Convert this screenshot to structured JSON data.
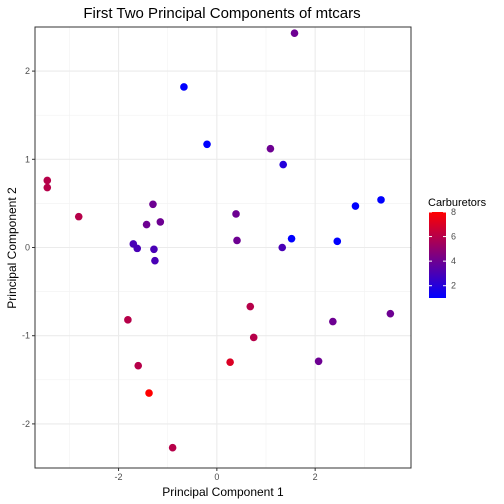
{
  "chart_data": {
    "type": "scatter",
    "title": "First Two Principal Components of mtcars",
    "xlabel": "Principal Component 1",
    "ylabel": "Principal Component 2",
    "xlim": [
      -3.7,
      3.95
    ],
    "ylim": [
      -2.5,
      2.5
    ],
    "x_ticks": [
      -2,
      0,
      2
    ],
    "y_ticks": [
      -2,
      -1,
      0,
      1,
      2
    ],
    "x_tick_labels": [
      "-2",
      "0",
      "2"
    ],
    "y_tick_labels": [
      "-2",
      "-1",
      "0",
      "1",
      "2"
    ],
    "grid": true,
    "legend": {
      "title": "Carburetors",
      "position": "right",
      "range": [
        1,
        8
      ],
      "ticks": [
        2,
        4,
        6,
        8
      ],
      "tick_labels": [
        "2",
        "4",
        "6",
        "8"
      ],
      "low_color": "#0000ff",
      "high_color": "#ff0000"
    },
    "points": [
      {
        "x": 1.58,
        "y": 2.43,
        "carb": 4
      },
      {
        "x": -0.67,
        "y": 1.82,
        "carb": 1
      },
      {
        "x": -0.2,
        "y": 1.17,
        "carb": 1
      },
      {
        "x": 1.09,
        "y": 1.12,
        "carb": 4
      },
      {
        "x": 1.35,
        "y": 0.94,
        "carb": 2
      },
      {
        "x": -3.45,
        "y": 0.76,
        "carb": 6
      },
      {
        "x": -3.45,
        "y": 0.68,
        "carb": 6
      },
      {
        "x": 2.82,
        "y": 0.47,
        "carb": 1
      },
      {
        "x": 3.34,
        "y": 0.54,
        "carb": 1
      },
      {
        "x": -2.81,
        "y": 0.35,
        "carb": 6
      },
      {
        "x": -1.3,
        "y": 0.49,
        "carb": 4
      },
      {
        "x": 0.39,
        "y": 0.38,
        "carb": 4
      },
      {
        "x": -1.15,
        "y": 0.29,
        "carb": 4
      },
      {
        "x": -1.43,
        "y": 0.26,
        "carb": 4
      },
      {
        "x": 1.52,
        "y": 0.1,
        "carb": 1
      },
      {
        "x": 0.41,
        "y": 0.08,
        "carb": 4
      },
      {
        "x": 2.45,
        "y": 0.07,
        "carb": 1
      },
      {
        "x": -1.7,
        "y": 0.04,
        "carb": 3
      },
      {
        "x": -1.62,
        "y": -0.01,
        "carb": 3
      },
      {
        "x": -1.28,
        "y": -0.02,
        "carb": 3
      },
      {
        "x": 1.33,
        "y": 0.0,
        "carb": 3
      },
      {
        "x": -1.26,
        "y": -0.15,
        "carb": 3
      },
      {
        "x": 0.68,
        "y": -0.67,
        "carb": 6
      },
      {
        "x": 3.53,
        "y": -0.75,
        "carb": 4
      },
      {
        "x": -1.81,
        "y": -0.82,
        "carb": 6
      },
      {
        "x": 2.36,
        "y": -0.84,
        "carb": 4
      },
      {
        "x": 0.75,
        "y": -1.02,
        "carb": 6
      },
      {
        "x": 0.27,
        "y": -1.3,
        "carb": 7
      },
      {
        "x": 2.07,
        "y": -1.29,
        "carb": 4
      },
      {
        "x": -1.6,
        "y": -1.34,
        "carb": 6
      },
      {
        "x": -1.38,
        "y": -1.65,
        "carb": 8
      },
      {
        "x": -0.9,
        "y": -2.27,
        "carb": 6
      }
    ]
  }
}
